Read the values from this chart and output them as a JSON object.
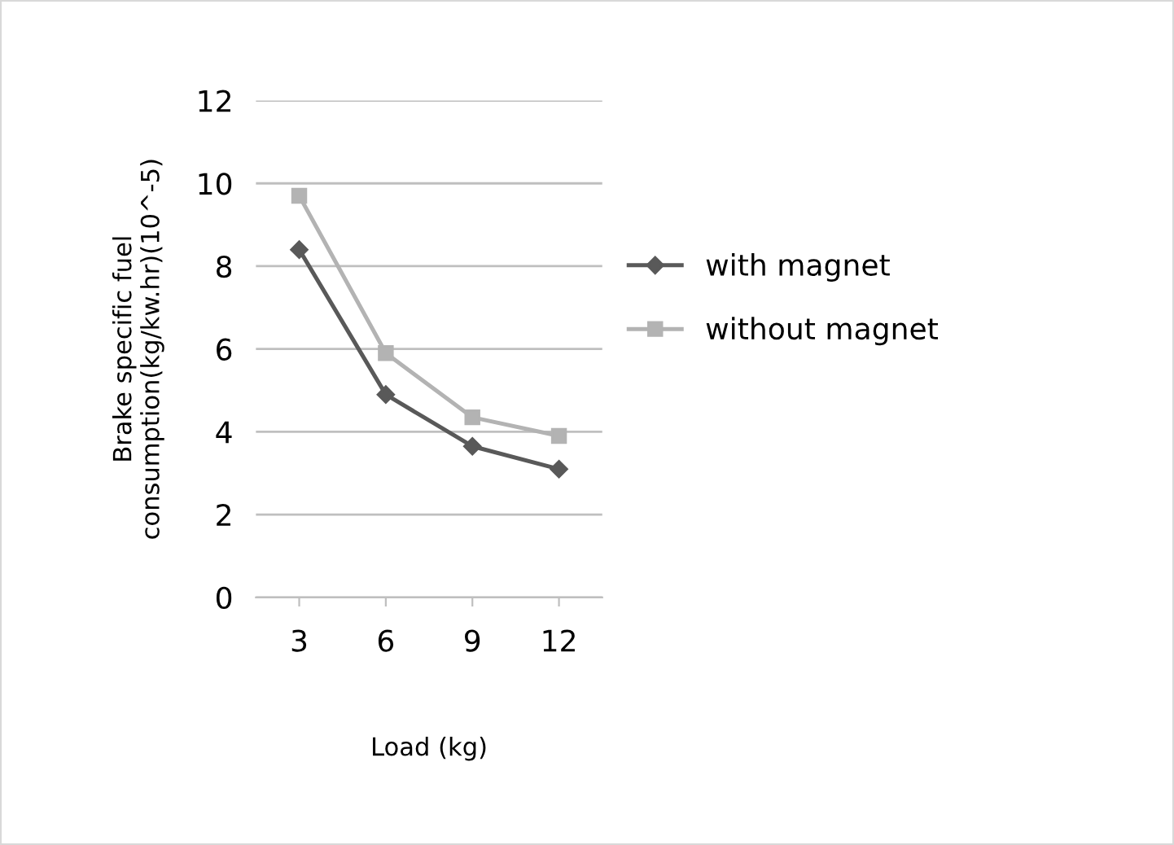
{
  "chart_data": {
    "type": "line",
    "xlabel": "Load (kg)",
    "ylabel": "Brake specific fuel\nconsumption(kg/kw.hr)(10^-5)",
    "categories": [
      "3",
      "6",
      "9",
      "12"
    ],
    "series": [
      {
        "name": "with magnet",
        "color": "#595959",
        "marker": "diamond",
        "values": [
          8.4,
          4.9,
          3.65,
          3.1
        ]
      },
      {
        "name": "without magnet",
        "color": "#b3b3b3",
        "marker": "square",
        "values": [
          9.7,
          5.9,
          4.35,
          3.9
        ]
      }
    ],
    "ylim": [
      0,
      12
    ],
    "yticks": [
      0,
      2,
      4,
      6,
      8,
      10,
      12
    ],
    "grid": "y",
    "legend": "right"
  }
}
